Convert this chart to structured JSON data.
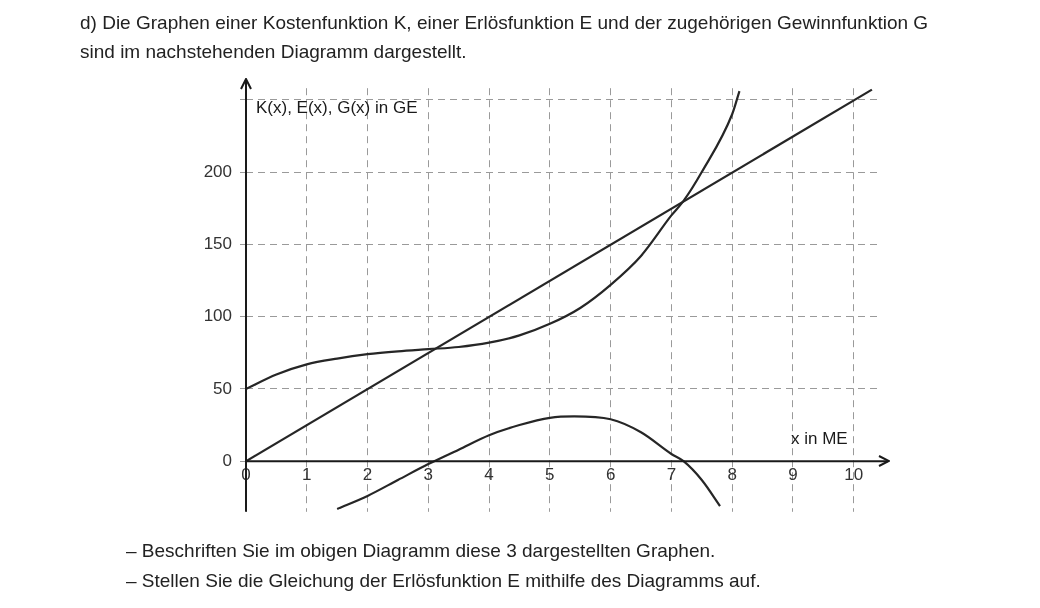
{
  "chart_data": {
    "type": "line",
    "title": "d) Die Graphen einer Kostenfunktion K, einer Erlösfunktion E und der zugehörigen Gewinnfunktion G sind im nachstehenden Diagramm dargestellt.",
    "xlabel": "x in ME",
    "ylabel": "K(x), E(x), G(x) in GE",
    "xlim": [
      0,
      10.4
    ],
    "ylim": [
      -35,
      258
    ],
    "xticks": [
      0,
      1,
      2,
      3,
      4,
      5,
      6,
      7,
      8,
      9,
      10
    ],
    "yticks": [
      0,
      50,
      100,
      150,
      200,
      {
        "value": 250,
        "label": null
      }
    ],
    "grid": true,
    "line_style": "solid",
    "marker": "none",
    "legend": false,
    "series": [
      {
        "color": "#262626",
        "x": [
          0,
          0.5,
          1,
          1.5,
          2,
          2.5,
          3,
          3.5,
          4,
          4.5,
          5,
          5.5,
          6,
          6.5,
          7,
          7.2,
          7.5,
          8,
          8.12
        ],
        "values": [
          50,
          60,
          67,
          71,
          74,
          76,
          77.5,
          79,
          82,
          87,
          95,
          106,
          122,
          142,
          170,
          180,
          200,
          240,
          256
        ]
      },
      {
        "color": "#262626",
        "x": [
          0,
          10.3
        ],
        "values": [
          0,
          257
        ]
      },
      {
        "color": "#262626",
        "x": [
          1.5,
          2,
          2.5,
          3,
          3.5,
          4,
          4.5,
          5,
          5.4,
          6,
          6.5,
          7,
          7.2,
          7.5,
          7.8
        ],
        "values": [
          -33,
          -24,
          -13,
          -2,
          8,
          18,
          25,
          30,
          31,
          29,
          20,
          5,
          0,
          -13,
          -31
        ]
      }
    ],
    "annotations": [
      "– Beschriften Sie im obigen Diagramm diese 3 dargestellten Graphen.",
      "– Stellen Sie die Gleichung der Erlösfunktion E mithilfe des Diagramms auf."
    ]
  }
}
